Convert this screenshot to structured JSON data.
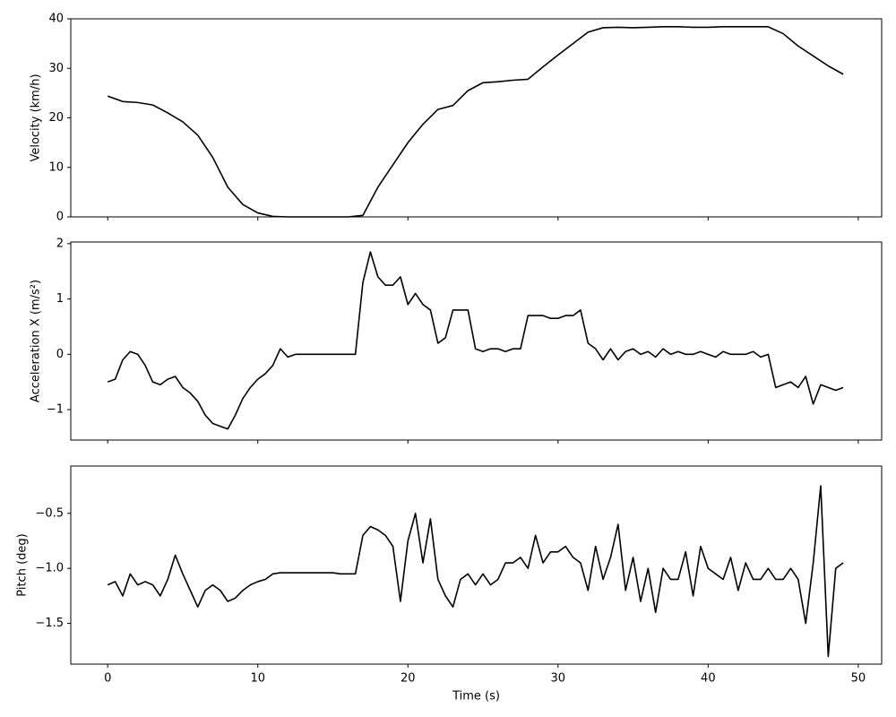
{
  "chart_data": [
    {
      "type": "line",
      "ylabel": "Velocity (km/h)",
      "x": [
        0,
        1,
        2,
        3,
        4,
        5,
        6,
        7,
        8,
        9,
        10,
        11,
        12,
        13,
        14,
        15,
        16,
        17,
        18,
        19,
        20,
        21,
        22,
        23,
        24,
        25,
        26,
        27,
        28,
        29,
        30,
        31,
        32,
        33,
        34,
        35,
        36,
        37,
        38,
        39,
        40,
        41,
        42,
        43,
        44,
        45,
        46,
        47,
        48,
        49
      ],
      "series": [
        {
          "color": "#000000",
          "values": [
            24.4,
            23.3,
            23.1,
            22.6,
            21,
            19.2,
            16.5,
            12,
            6,
            2.5,
            0.8,
            0.1,
            0,
            0,
            0,
            0,
            0,
            0.3,
            6,
            10.5,
            15,
            18.7,
            21.7,
            22.5,
            25.5,
            27.1,
            27.3,
            27.6,
            27.8,
            30.3,
            32.7,
            35,
            37.3,
            38.2,
            38.3,
            38.2,
            38.3,
            38.4,
            38.4,
            38.3,
            38.3,
            38.4,
            38.4,
            38.4,
            38.4,
            37,
            34.5,
            32.5,
            30.5,
            28.8
          ]
        }
      ],
      "xlim": [
        -2.46,
        51.56
      ],
      "xticks": [
        0,
        10,
        20,
        30,
        40,
        50
      ],
      "ylim": [
        0,
        40
      ],
      "yticks": [
        0,
        10,
        20,
        30,
        40
      ]
    },
    {
      "type": "line",
      "ylabel": "Acceleration X (m/s²)",
      "x": [
        0,
        0.5,
        1,
        1.5,
        2,
        2.5,
        3,
        3.5,
        4,
        4.5,
        5,
        5.5,
        6,
        6.5,
        7,
        7.5,
        8,
        8.5,
        9,
        9.5,
        10,
        10.5,
        11,
        11.5,
        12,
        12.5,
        13,
        13.5,
        14,
        14.5,
        15,
        15.5,
        16,
        16.5,
        17,
        17.5,
        18,
        18.5,
        19,
        19.5,
        20,
        20.5,
        21,
        21.5,
        22,
        22.5,
        23,
        23.5,
        24,
        24.5,
        25,
        25.5,
        26,
        26.5,
        27,
        27.5,
        28,
        28.5,
        29,
        29.5,
        30,
        30.5,
        31,
        31.5,
        32,
        32.5,
        33,
        33.5,
        34,
        34.5,
        35,
        35.5,
        36,
        36.5,
        37,
        37.5,
        38,
        38.5,
        39,
        39.5,
        40,
        40.5,
        41,
        41.5,
        42,
        42.5,
        43,
        43.5,
        44,
        44.5,
        45,
        45.5,
        46,
        46.5,
        47,
        47.5,
        48,
        48.5,
        49
      ],
      "series": [
        {
          "color": "#000000",
          "values": [
            -0.5,
            -0.45,
            -0.1,
            0.05,
            0,
            -0.2,
            -0.5,
            -0.55,
            -0.45,
            -0.4,
            -0.6,
            -0.7,
            -0.85,
            -1.1,
            -1.25,
            -1.3,
            -1.35,
            -1.1,
            -0.8,
            -0.6,
            -0.45,
            -0.35,
            -0.2,
            0.1,
            -0.05,
            0,
            0,
            0,
            0,
            0,
            0,
            0,
            0,
            0,
            1.3,
            1.85,
            1.4,
            1.25,
            1.25,
            1.4,
            0.9,
            1.1,
            0.9,
            0.8,
            0.2,
            0.3,
            0.8,
            0.8,
            0.8,
            0.1,
            0.05,
            0.1,
            0.1,
            0.05,
            0.1,
            0.1,
            0.7,
            0.7,
            0.7,
            0.65,
            0.65,
            0.7,
            0.7,
            0.8,
            0.2,
            0.1,
            -0.1,
            0.1,
            -0.1,
            0.05,
            0.1,
            0,
            0.05,
            -0.05,
            0.1,
            0,
            0.05,
            0,
            0,
            0.05,
            0,
            -0.05,
            0.05,
            0,
            0,
            0,
            0.05,
            -0.05,
            0,
            -0.6,
            -0.55,
            -0.5,
            -0.6,
            -0.4,
            -0.9,
            -0.55,
            -0.6,
            -0.65,
            -0.6
          ]
        }
      ],
      "xlim": [
        -2.46,
        51.56
      ],
      "xticks": [
        0,
        10,
        20,
        30,
        40,
        50
      ],
      "ylim": [
        -1.55,
        2.03
      ],
      "yticks": [
        {
          "value": -1,
          "label": "−1"
        },
        0,
        1,
        2
      ]
    },
    {
      "type": "line",
      "ylabel": "Pitch (deg)",
      "xlabel": "Time (s)",
      "x": [
        0,
        0.5,
        1,
        1.5,
        2,
        2.5,
        3,
        3.5,
        4,
        4.5,
        5,
        5.5,
        6,
        6.5,
        7,
        7.5,
        8,
        8.5,
        9,
        9.5,
        10,
        10.5,
        11,
        11.5,
        12,
        12.5,
        13,
        13.5,
        14,
        14.5,
        15,
        15.5,
        16,
        16.5,
        17,
        17.5,
        18,
        18.5,
        19,
        19.5,
        20,
        20.5,
        21,
        21.5,
        22,
        22.5,
        23,
        23.5,
        24,
        24.5,
        25,
        25.5,
        26,
        26.5,
        27,
        27.5,
        28,
        28.5,
        29,
        29.5,
        30,
        30.5,
        31,
        31.5,
        32,
        32.5,
        33,
        33.5,
        34,
        34.5,
        35,
        35.5,
        36,
        36.5,
        37,
        37.5,
        38,
        38.5,
        39,
        39.5,
        40,
        40.5,
        41,
        41.5,
        42,
        42.5,
        43,
        43.5,
        44,
        44.5,
        45,
        45.5,
        46,
        46.5,
        47,
        47.5,
        48,
        48.5,
        49
      ],
      "series": [
        {
          "color": "#000000",
          "values": [
            -1.15,
            -1.12,
            -1.25,
            -1.05,
            -1.15,
            -1.12,
            -1.15,
            -1.25,
            -1.1,
            -0.88,
            -1.05,
            -1.2,
            -1.35,
            -1.2,
            -1.15,
            -1.2,
            -1.3,
            -1.27,
            -1.2,
            -1.15,
            -1.12,
            -1.1,
            -1.05,
            -1.04,
            -1.04,
            -1.04,
            -1.04,
            -1.04,
            -1.04,
            -1.04,
            -1.04,
            -1.05,
            -1.05,
            -1.05,
            -0.7,
            -0.62,
            -0.65,
            -0.7,
            -0.8,
            -1.3,
            -0.75,
            -0.5,
            -0.95,
            -0.55,
            -1.1,
            -1.25,
            -1.35,
            -1.1,
            -1.05,
            -1.15,
            -1.05,
            -1.15,
            -1.1,
            -0.95,
            -0.95,
            -0.9,
            -1.0,
            -0.7,
            -0.95,
            -0.85,
            -0.85,
            -0.8,
            -0.9,
            -0.95,
            -1.2,
            -0.8,
            -1.1,
            -0.9,
            -0.6,
            -1.2,
            -0.9,
            -1.3,
            -1.0,
            -1.4,
            -1.0,
            -1.1,
            -1.1,
            -0.85,
            -1.25,
            -0.8,
            -1.0,
            -1.05,
            -1.1,
            -0.9,
            -1.2,
            -0.95,
            -1.1,
            -1.1,
            -1.0,
            -1.1,
            -1.1,
            -1.0,
            -1.1,
            -1.5,
            -0.95,
            -0.25,
            -1.8,
            -1.0,
            -0.95
          ]
        }
      ],
      "xlim": [
        -2.46,
        51.56
      ],
      "xticks": [
        0,
        10,
        20,
        30,
        40,
        50
      ],
      "ylim": [
        -1.87,
        -0.07
      ],
      "yticks": [
        {
          "value": -1.5,
          "label": "−1.5"
        },
        {
          "value": -1,
          "label": "−1.0"
        },
        {
          "value": -0.5,
          "label": "−0.5"
        }
      ]
    }
  ]
}
